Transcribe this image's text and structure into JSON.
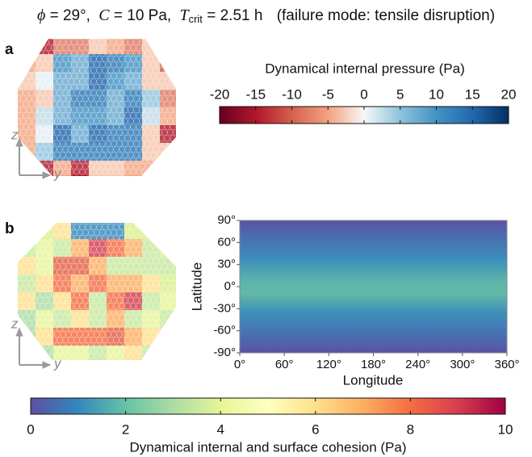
{
  "title": {
    "phi": "ϕ",
    "phi_value": "= 29°,",
    "cohesion_symbol": "C",
    "cohesion_value": "= 10 Pa,",
    "t_symbol": "T",
    "t_subscript": "crit",
    "t_value": "= 2.51 h",
    "note": "(failure mode: tensile disruption)"
  },
  "panels": [
    {
      "label": "a",
      "axes": {
        "z": "z",
        "y": "y"
      },
      "colorbar": {
        "title": "Dynamical internal pressure (Pa)",
        "lim": [
          -20,
          20
        ],
        "ticks": [
          -20,
          -15,
          -10,
          -5,
          0,
          5,
          10,
          15,
          20
        ]
      }
    },
    {
      "label": "b",
      "axes": {
        "z": "z",
        "y": "y"
      },
      "map": {
        "ylabel": "Latitude",
        "xlabel": "Longitude",
        "xlim": [
          0,
          360
        ],
        "ylim": [
          -90,
          90
        ],
        "xticks": [
          {
            "value": 0,
            "label": "0°"
          },
          {
            "value": 60,
            "label": "60°"
          },
          {
            "value": 120,
            "label": "120°"
          },
          {
            "value": 180,
            "label": "180°"
          },
          {
            "value": 240,
            "label": "240°"
          },
          {
            "value": 300,
            "label": "300°"
          },
          {
            "value": 360,
            "label": "360°"
          }
        ],
        "yticks": [
          {
            "value": -90,
            "label": "-90°"
          },
          {
            "value": -60,
            "label": "-60°"
          },
          {
            "value": -30,
            "label": "-30°"
          },
          {
            "value": 0,
            "label": "0°"
          },
          {
            "value": 30,
            "label": "30°"
          },
          {
            "value": 60,
            "label": "60°"
          },
          {
            "value": 90,
            "label": "90°"
          }
        ]
      },
      "colorbar": {
        "title": "Dynamical internal and surface cohesion (Pa)",
        "lim": [
          0,
          10
        ],
        "ticks": [
          0,
          2,
          4,
          6,
          8,
          10
        ]
      }
    }
  ]
}
